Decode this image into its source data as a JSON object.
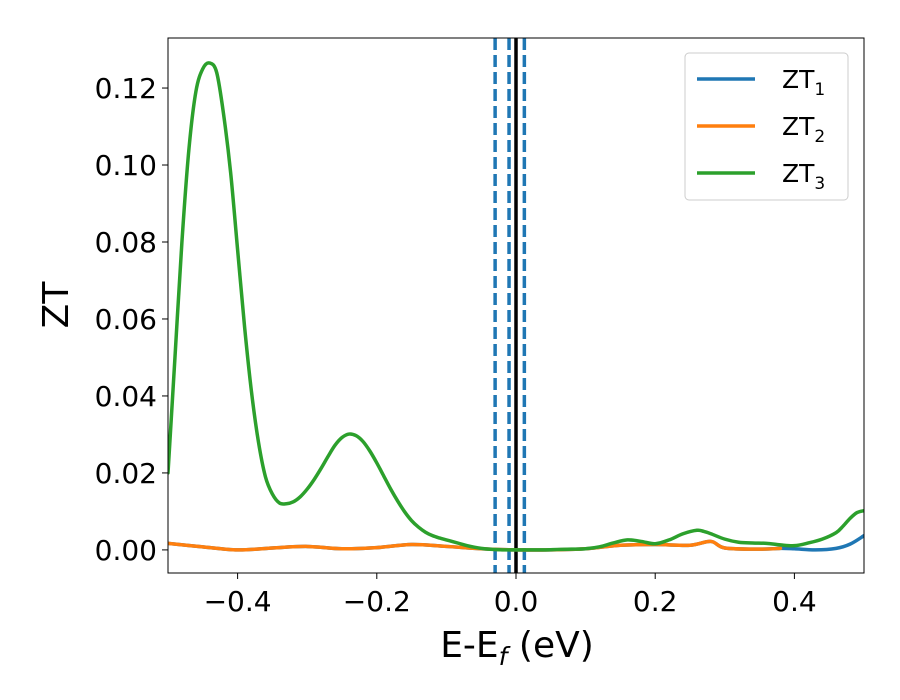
{
  "chart_data": {
    "type": "line",
    "xlabel_main": "E-E",
    "xlabel_sub": "f",
    "xlabel_unit": " (eV)",
    "ylabel": "ZT",
    "xlim": [
      -0.5,
      0.5
    ],
    "ylim": [
      -0.006,
      0.133
    ],
    "xticks": [
      -0.4,
      -0.2,
      0.0,
      0.2,
      0.4
    ],
    "xtick_labels": [
      "−0.4",
      "−0.2",
      "0.0",
      "0.2",
      "0.4"
    ],
    "yticks": [
      0.0,
      0.02,
      0.04,
      0.06,
      0.08,
      0.1,
      0.12
    ],
    "ytick_labels": [
      "0.00",
      "0.02",
      "0.04",
      "0.06",
      "0.08",
      "0.10",
      "0.12"
    ],
    "grid": false,
    "legend_position": "top-right",
    "vertical_lines": [
      {
        "x": -0.03,
        "style": "dashed",
        "color": "#1f77b4"
      },
      {
        "x": -0.01,
        "style": "dashed",
        "color": "#1f77b4"
      },
      {
        "x": 0.0,
        "style": "solid",
        "color": "#000000"
      },
      {
        "x": 0.012,
        "style": "dashed",
        "color": "#1f77b4"
      }
    ],
    "series": [
      {
        "name": "ZT",
        "subscript": "1",
        "color": "#1f77b4",
        "x": [
          -0.5,
          -0.45,
          -0.4,
          -0.35,
          -0.3,
          -0.25,
          -0.2,
          -0.15,
          -0.1,
          -0.05,
          0.0,
          0.05,
          0.1,
          0.15,
          0.2,
          0.25,
          0.28,
          0.3,
          0.35,
          0.38,
          0.4,
          0.43,
          0.46,
          0.48,
          0.5
        ],
        "y": [
          0.0017,
          0.0008,
          0.0,
          0.0005,
          0.0009,
          0.0003,
          0.0006,
          0.0014,
          0.0009,
          0.0003,
          0.0,
          0.0,
          0.0003,
          0.0012,
          0.0014,
          0.0012,
          0.0022,
          0.0005,
          0.0002,
          0.0004,
          0.0003,
          0.0,
          0.0004,
          0.0015,
          0.0037
        ]
      },
      {
        "name": "ZT",
        "subscript": "2",
        "color": "#ff7f0e",
        "x": [
          -0.5,
          -0.45,
          -0.4,
          -0.35,
          -0.3,
          -0.25,
          -0.2,
          -0.15,
          -0.1,
          -0.05,
          0.0,
          0.05,
          0.1,
          0.15,
          0.2,
          0.25,
          0.28,
          0.3,
          0.35,
          0.38
        ],
        "y": [
          0.0017,
          0.0008,
          0.0,
          0.0005,
          0.0009,
          0.0003,
          0.0006,
          0.0014,
          0.0009,
          0.0003,
          0.0,
          0.0,
          0.0003,
          0.0012,
          0.0014,
          0.0012,
          0.0022,
          0.0005,
          0.0002,
          0.0004
        ]
      },
      {
        "name": "ZT",
        "subscript": "3",
        "color": "#2ca02c",
        "x": [
          -0.5,
          -0.49,
          -0.48,
          -0.47,
          -0.46,
          -0.45,
          -0.44,
          -0.43,
          -0.42,
          -0.41,
          -0.4,
          -0.39,
          -0.38,
          -0.37,
          -0.36,
          -0.35,
          -0.34,
          -0.33,
          -0.32,
          -0.31,
          -0.3,
          -0.29,
          -0.28,
          -0.27,
          -0.26,
          -0.25,
          -0.24,
          -0.23,
          -0.22,
          -0.21,
          -0.2,
          -0.19,
          -0.18,
          -0.17,
          -0.16,
          -0.15,
          -0.14,
          -0.13,
          -0.12,
          -0.11,
          -0.1,
          -0.09,
          -0.08,
          -0.07,
          -0.06,
          -0.05,
          -0.04,
          -0.03,
          -0.02,
          -0.01,
          0.0,
          0.02,
          0.04,
          0.06,
          0.08,
          0.1,
          0.12,
          0.14,
          0.16,
          0.18,
          0.2,
          0.22,
          0.24,
          0.26,
          0.27,
          0.28,
          0.3,
          0.32,
          0.34,
          0.36,
          0.38,
          0.4,
          0.42,
          0.44,
          0.46,
          0.47,
          0.48,
          0.49,
          0.5
        ],
        "y": [
          0.02,
          0.05,
          0.08,
          0.104,
          0.119,
          0.125,
          0.1265,
          0.124,
          0.113,
          0.098,
          0.078,
          0.058,
          0.041,
          0.028,
          0.019,
          0.0145,
          0.0122,
          0.012,
          0.0125,
          0.0138,
          0.0158,
          0.0183,
          0.0212,
          0.0243,
          0.0272,
          0.0292,
          0.0301,
          0.0297,
          0.0282,
          0.0257,
          0.0226,
          0.0192,
          0.0158,
          0.0127,
          0.0099,
          0.0076,
          0.0059,
          0.0046,
          0.0037,
          0.0031,
          0.0026,
          0.0021,
          0.0016,
          0.0011,
          0.0007,
          0.0004,
          0.0002,
          0.0001,
          0.0,
          0.0,
          0.0,
          0.0,
          0.0,
          0.0001,
          0.0002,
          0.0003,
          0.0008,
          0.0018,
          0.0026,
          0.0022,
          0.0016,
          0.0026,
          0.0042,
          0.0051,
          0.0048,
          0.0042,
          0.0028,
          0.002,
          0.0018,
          0.0017,
          0.0013,
          0.0011,
          0.0018,
          0.0028,
          0.0045,
          0.0062,
          0.0082,
          0.0097,
          0.0102
        ]
      }
    ]
  }
}
